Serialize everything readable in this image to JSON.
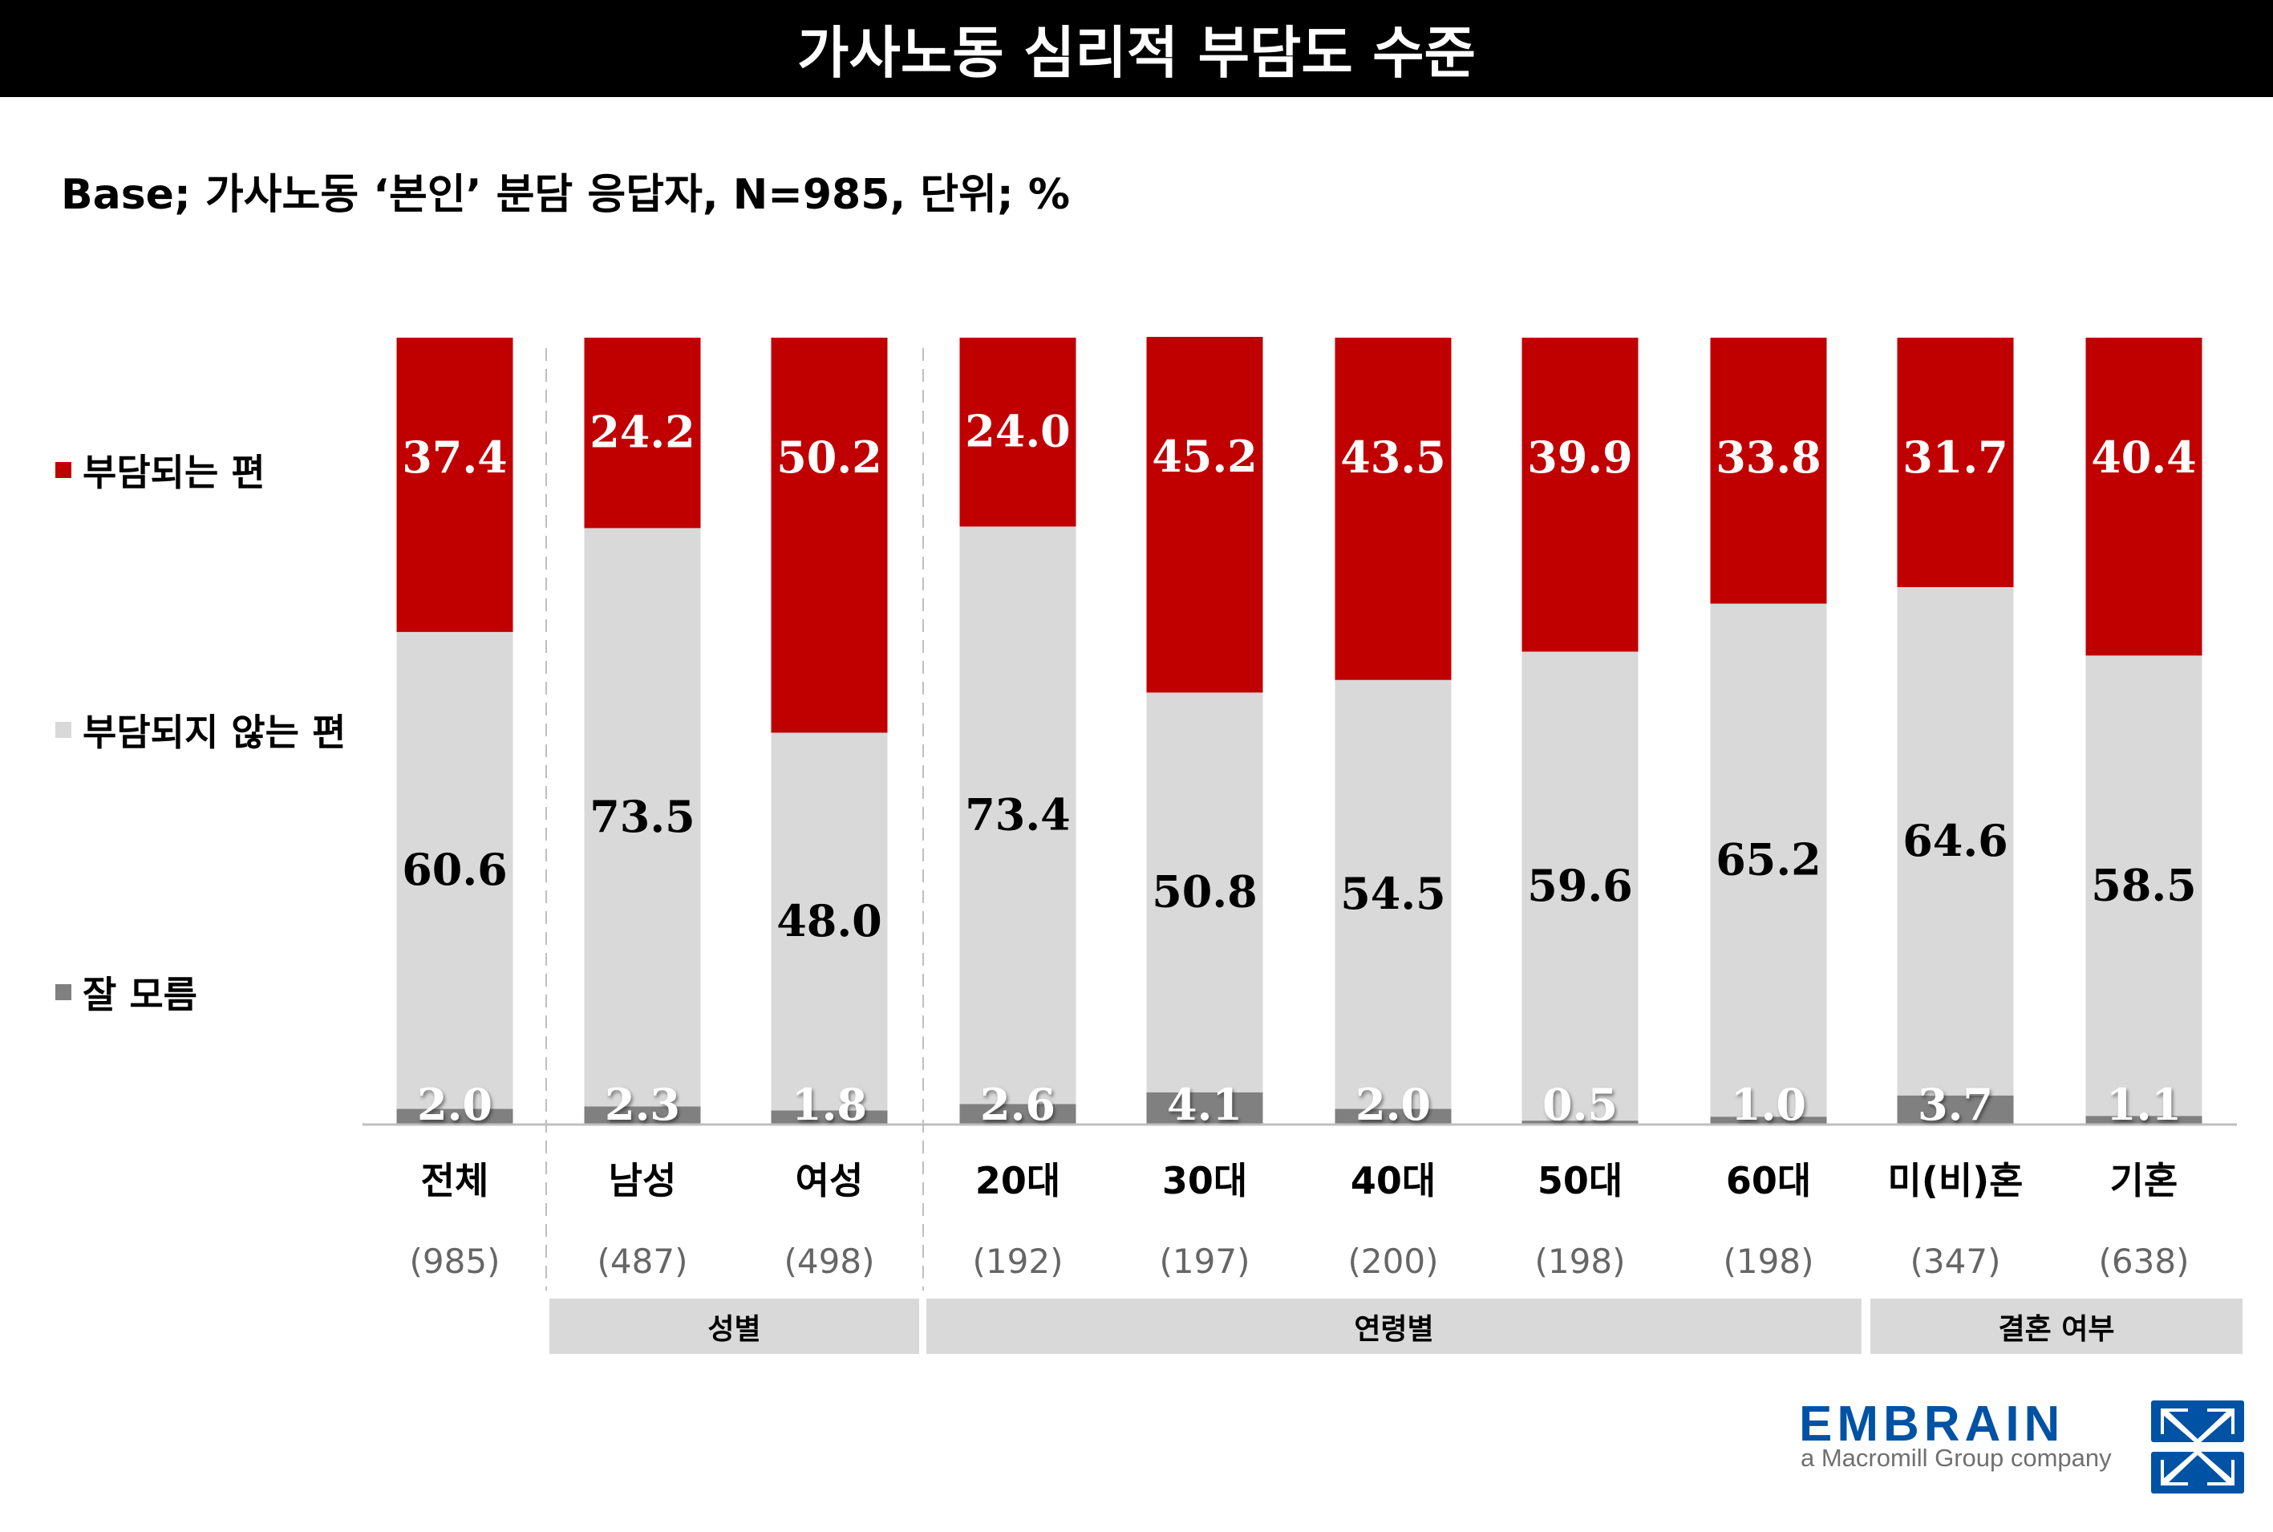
{
  "header": {
    "title": "가사노동 심리적 부담도 수준"
  },
  "subtitle": "Base; 가사노동 ‘본인’ 분담 응답자, N=985, 단위; %",
  "logo": {
    "brand": "EMBRAIN",
    "tagline": "a Macromill Group company",
    "brand_color": "#0052a5"
  },
  "chart_data": {
    "type": "bar",
    "stacked": true,
    "title": "가사노동 심리적 부담도 수준",
    "ylabel": "%",
    "ylim": [
      0,
      100
    ],
    "legend_position": "left",
    "categories": [
      "전체",
      "남성",
      "여성",
      "20대",
      "30대",
      "40대",
      "50대",
      "60대",
      "미(비)혼",
      "기혼"
    ],
    "sample_sizes": [
      "(985)",
      "(487)",
      "(498)",
      "(192)",
      "(197)",
      "(200)",
      "(198)",
      "(198)",
      "(347)",
      "(638)"
    ],
    "groups": [
      {
        "label": "성별",
        "categories": [
          "남성",
          "여성"
        ]
      },
      {
        "label": "연령별",
        "categories": [
          "20대",
          "30대",
          "40대",
          "50대",
          "60대"
        ]
      },
      {
        "label": "결혼 여부",
        "categories": [
          "미(비)혼",
          "기혼"
        ]
      }
    ],
    "series": [
      {
        "name": "잘 모름",
        "color": "#808080",
        "values": [
          2.0,
          2.3,
          1.8,
          2.6,
          4.1,
          2.0,
          0.5,
          1.0,
          3.7,
          1.1
        ]
      },
      {
        "name": "부담되지 않는 편",
        "color": "#d9d9d9",
        "values": [
          60.6,
          73.5,
          48.0,
          73.4,
          50.8,
          54.5,
          59.6,
          65.2,
          64.6,
          58.5
        ]
      },
      {
        "name": "부담되는 편",
        "color": "#c00000",
        "values": [
          37.4,
          24.2,
          50.2,
          24.0,
          45.2,
          43.5,
          39.9,
          33.8,
          31.7,
          40.4
        ]
      }
    ],
    "legend": [
      "부담되는 편",
      "부담되지 않는 편",
      "잘 모름"
    ]
  }
}
